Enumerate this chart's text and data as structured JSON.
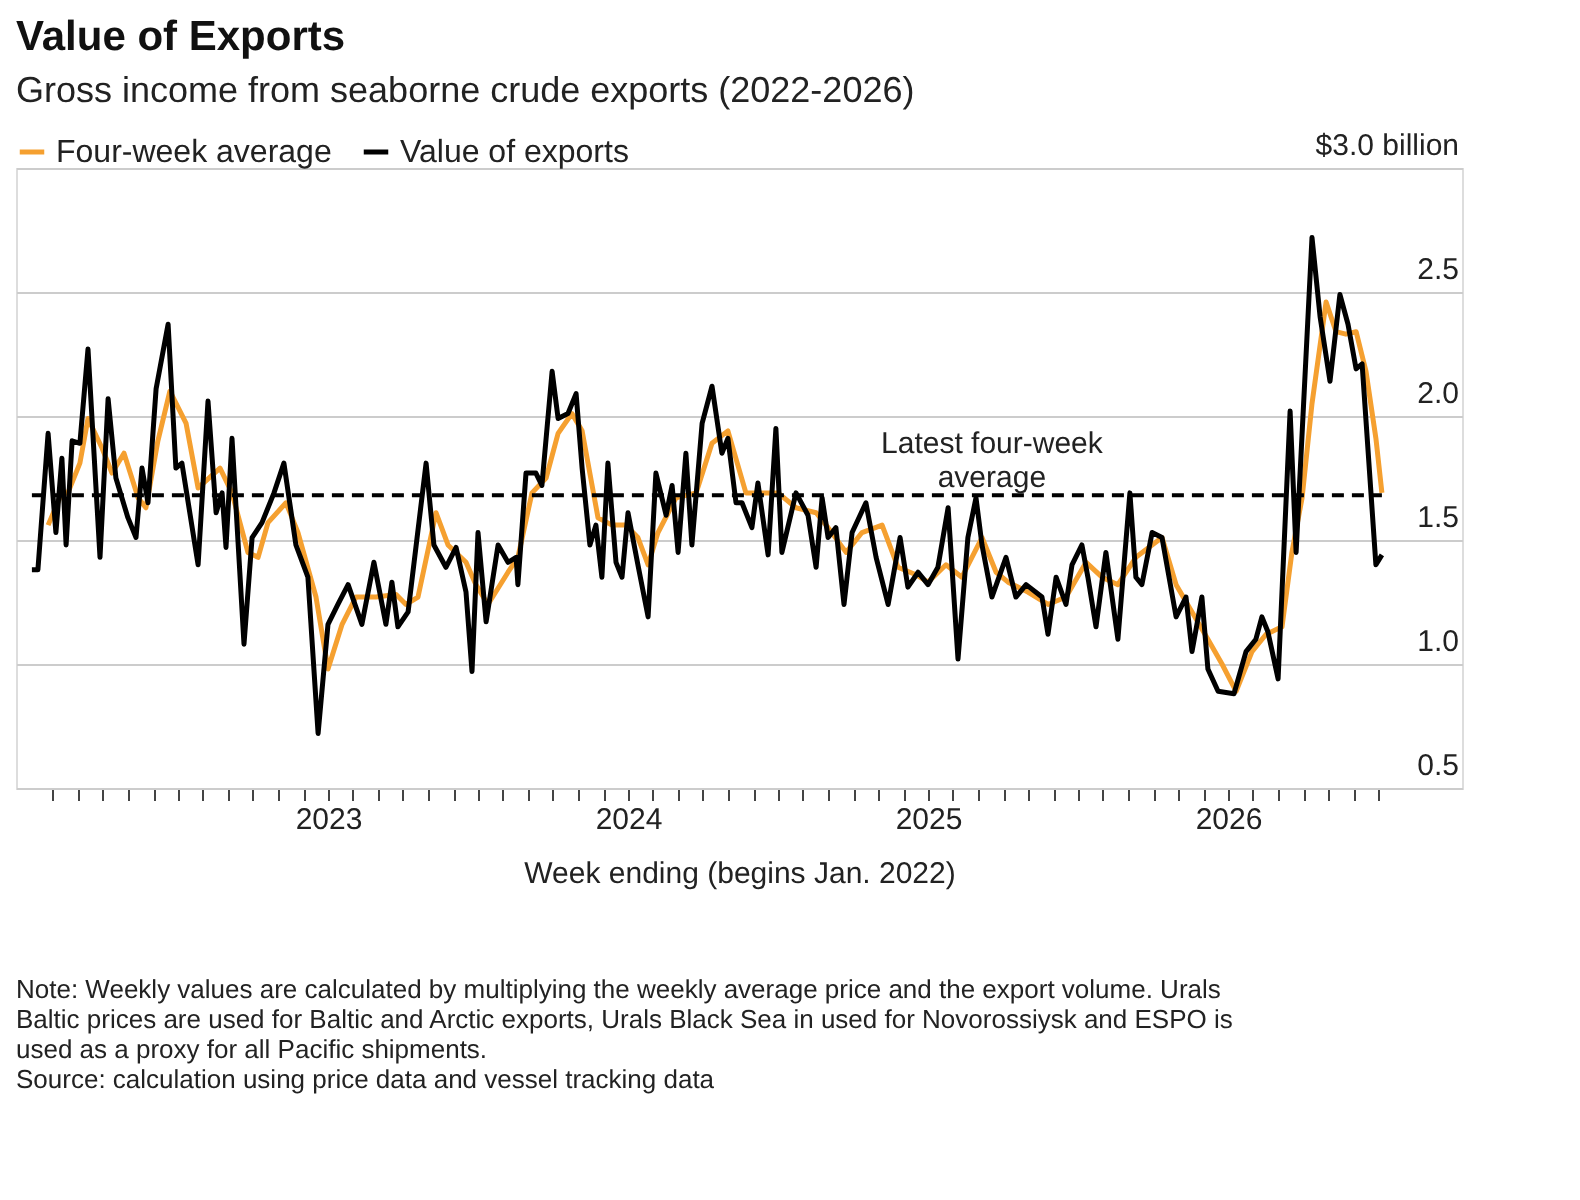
{
  "chart_data": {
    "type": "line",
    "title": "Value of Exports",
    "subtitle": "Gross income from seaborne crude exports (2022-2026)",
    "xlabel": "Week ending (begins Jan. 2022)",
    "legend": "top left",
    "grid": "y",
    "line_style": "solid",
    "xlim": [
      2021.96,
      2026.78
    ],
    "ylim": [
      0.5,
      3.0
    ],
    "yticks": [
      0.5,
      {
        "value": 1.0,
        "label": "1.0"
      },
      1.5,
      {
        "value": 2.0,
        "label": "2.0"
      },
      2.5,
      {
        "value": 3.0,
        "label": "$3.0 billion"
      }
    ],
    "xticks": [
      {
        "value": 2022.083,
        "label": null
      },
      {
        "value": 2022.167,
        "label": null
      },
      {
        "value": 2022.25,
        "label": null
      },
      {
        "value": 2022.333,
        "label": null
      },
      {
        "value": 2022.417,
        "label": null
      },
      {
        "value": 2022.5,
        "label": null
      },
      {
        "value": 2022.583,
        "label": null
      },
      {
        "value": 2022.667,
        "label": null
      },
      {
        "value": 2022.75,
        "label": null
      },
      {
        "value": 2022.833,
        "label": null
      },
      {
        "value": 2022.917,
        "label": null
      },
      {
        "value": 2023,
        "label": "2023"
      },
      {
        "value": 2023.083,
        "label": null
      },
      {
        "value": 2023.167,
        "label": null
      },
      {
        "value": 2023.25,
        "label": null
      },
      {
        "value": 2023.333,
        "label": null
      },
      {
        "value": 2023.417,
        "label": null
      },
      {
        "value": 2023.5,
        "label": null
      },
      {
        "value": 2023.583,
        "label": null
      },
      {
        "value": 2023.667,
        "label": null
      },
      {
        "value": 2023.75,
        "label": null
      },
      {
        "value": 2023.833,
        "label": null
      },
      {
        "value": 2023.917,
        "label": null
      },
      {
        "value": 2024,
        "label": "2024"
      },
      {
        "value": 2024.083,
        "label": null
      },
      {
        "value": 2024.167,
        "label": null
      },
      {
        "value": 2024.25,
        "label": null
      },
      {
        "value": 2024.333,
        "label": null
      },
      {
        "value": 2024.417,
        "label": null
      },
      {
        "value": 2024.5,
        "label": null
      },
      {
        "value": 2024.583,
        "label": null
      },
      {
        "value": 2024.667,
        "label": null
      },
      {
        "value": 2024.75,
        "label": null
      },
      {
        "value": 2024.833,
        "label": null
      },
      {
        "value": 2024.917,
        "label": null
      },
      {
        "value": 2025,
        "label": "2025"
      },
      {
        "value": 2025.083,
        "label": null
      },
      {
        "value": 2025.167,
        "label": null
      },
      {
        "value": 2025.25,
        "label": null
      },
      {
        "value": 2025.333,
        "label": null
      },
      {
        "value": 2025.417,
        "label": null
      },
      {
        "value": 2025.5,
        "label": null
      },
      {
        "value": 2025.583,
        "label": null
      },
      {
        "value": 2025.667,
        "label": null
      },
      {
        "value": 2025.75,
        "label": null
      },
      {
        "value": 2025.833,
        "label": null
      },
      {
        "value": 2025.917,
        "label": null
      },
      {
        "value": 2026,
        "label": "2026"
      },
      {
        "value": 2026.083,
        "label": null
      },
      {
        "value": 2026.167,
        "label": null
      },
      {
        "value": 2026.25,
        "label": null
      },
      {
        "value": 2026.333,
        "label": null
      },
      {
        "value": 2026.417,
        "label": null
      },
      {
        "value": 2026.5,
        "label": null
      }
    ],
    "ref_lines": [
      {
        "axis": "y",
        "value": 1.68,
        "label": "Latest four-week average",
        "color": "#000000",
        "line_style": "dashed"
      }
    ],
    "annotations": [
      "Note: Weekly values are calculated by multiplying the weekly average price and the export volume. Urals Baltic prices are used for Baltic and Arctic exports, Urals Black Sea in used for Novorossiysk and ESPO is used as a proxy for all Pacific shipments.",
      "Source: calculation using price data and vessel tracking data"
    ],
    "series": [
      {
        "name": "Four-week average",
        "color": "#f5a030",
        "x": [
          2022.067,
          2022.113,
          2022.133,
          2022.173,
          2022.2,
          2022.247,
          2022.28,
          2022.32,
          2022.367,
          2022.393,
          2022.433,
          2022.473,
          2022.527,
          2022.567,
          2022.64,
          2022.68,
          2022.733,
          2022.767,
          2022.8,
          2022.86,
          2022.9,
          2022.96,
          2023.0,
          2023.047,
          2023.093,
          2023.16,
          2023.227,
          2023.26,
          2023.3,
          2023.36,
          2023.4,
          2023.46,
          2023.493,
          2023.533,
          2023.6,
          2023.633,
          2023.68,
          2023.727,
          2023.767,
          2023.813,
          2023.847,
          2023.9,
          2023.947,
          2023.993,
          2024.033,
          2024.067,
          2024.1,
          2024.16,
          2024.227,
          2024.28,
          2024.333,
          2024.393,
          2024.447,
          2024.5,
          2024.56,
          2024.627,
          2024.667,
          2024.727,
          2024.78,
          2024.847,
          2024.9,
          2024.96,
          2025.0,
          2025.06,
          2025.113,
          2025.18,
          2025.227,
          2025.267,
          2025.333,
          2025.4,
          2025.46,
          2025.527,
          2025.58,
          2025.633,
          2025.693,
          2025.78,
          2025.827,
          2025.88,
          2025.933,
          2025.98,
          2026.027,
          2026.08,
          2026.127,
          2026.18,
          2026.213,
          2026.247,
          2026.28,
          2026.327,
          2026.36,
          2026.393,
          2026.427,
          2026.46,
          2026.493,
          2026.513
        ],
        "values": [
          1.56,
          1.69,
          1.69,
          1.81,
          1.99,
          1.87,
          1.77,
          1.85,
          1.67,
          1.63,
          1.9,
          2.1,
          1.97,
          1.71,
          1.79,
          1.69,
          1.45,
          1.43,
          1.57,
          1.65,
          1.53,
          1.27,
          0.98,
          1.16,
          1.27,
          1.27,
          1.28,
          1.24,
          1.27,
          1.61,
          1.48,
          1.41,
          1.32,
          1.24,
          1.37,
          1.43,
          1.69,
          1.75,
          1.93,
          2.01,
          1.94,
          1.59,
          1.56,
          1.56,
          1.51,
          1.4,
          1.53,
          1.67,
          1.69,
          1.89,
          1.94,
          1.69,
          1.69,
          1.69,
          1.63,
          1.61,
          1.55,
          1.45,
          1.53,
          1.56,
          1.39,
          1.36,
          1.33,
          1.4,
          1.35,
          1.51,
          1.37,
          1.33,
          1.29,
          1.24,
          1.27,
          1.41,
          1.35,
          1.32,
          1.43,
          1.51,
          1.32,
          1.21,
          1.1,
          1.0,
          0.89,
          1.05,
          1.12,
          1.15,
          1.45,
          1.67,
          2.05,
          2.46,
          2.34,
          2.33,
          2.34,
          2.18,
          1.91,
          1.69
        ]
      },
      {
        "name": "Value of exports",
        "color": "#000000",
        "x": [
          2022.013,
          2022.033,
          2022.067,
          2022.093,
          2022.113,
          2022.127,
          2022.147,
          2022.173,
          2022.2,
          2022.24,
          2022.267,
          2022.293,
          2022.333,
          2022.36,
          2022.38,
          2022.4,
          2022.427,
          2022.467,
          2022.493,
          2022.513,
          2022.567,
          2022.6,
          2022.627,
          2022.647,
          2022.66,
          2022.68,
          2022.72,
          2022.747,
          2022.78,
          2022.82,
          2022.853,
          2022.893,
          2022.933,
          2022.967,
          2023.0,
          2023.033,
          2023.067,
          2023.113,
          2023.153,
          2023.193,
          2023.213,
          2023.233,
          2023.267,
          2023.327,
          2023.353,
          2023.393,
          2023.427,
          2023.46,
          2023.48,
          2023.5,
          2023.527,
          2023.567,
          2023.6,
          2023.627,
          2023.633,
          2023.66,
          2023.693,
          2023.713,
          2023.747,
          2023.767,
          2023.8,
          2023.827,
          2023.847,
          2023.873,
          2023.893,
          2023.913,
          2023.933,
          2023.96,
          2023.98,
          2024.0,
          2024.033,
          2024.067,
          2024.093,
          2024.127,
          2024.147,
          2024.167,
          2024.193,
          2024.213,
          2024.247,
          2024.28,
          2024.313,
          2024.333,
          2024.36,
          2024.38,
          2024.413,
          2024.433,
          2024.467,
          2024.493,
          2024.513,
          2024.56,
          2024.6,
          2024.627,
          2024.647,
          2024.667,
          2024.693,
          2024.72,
          2024.747,
          2024.793,
          2024.827,
          2024.867,
          2024.907,
          2024.933,
          2024.967,
          2025.0,
          2025.033,
          2025.067,
          2025.1,
          2025.133,
          2025.16,
          2025.18,
          2025.213,
          2025.26,
          2025.293,
          2025.327,
          2025.38,
          2025.4,
          2025.427,
          2025.46,
          2025.48,
          2025.513,
          2025.533,
          2025.56,
          2025.593,
          2025.633,
          2025.673,
          2025.693,
          2025.713,
          2025.747,
          2025.78,
          2025.827,
          2025.86,
          2025.88,
          2025.913,
          2025.933,
          2025.967,
          2026.02,
          2026.06,
          2026.093,
          2026.113,
          2026.133,
          2026.167,
          2026.207,
          2026.227,
          2026.28,
          2026.307,
          2026.34,
          2026.373,
          2026.4,
          2026.427,
          2026.447,
          2026.493,
          2026.513
        ],
        "values": [
          1.38,
          1.38,
          1.93,
          1.53,
          1.83,
          1.48,
          1.9,
          1.89,
          2.27,
          1.43,
          2.07,
          1.75,
          1.59,
          1.51,
          1.79,
          1.65,
          2.11,
          2.37,
          1.79,
          1.81,
          1.4,
          2.06,
          1.61,
          1.69,
          1.47,
          1.91,
          1.08,
          1.51,
          1.57,
          1.69,
          1.81,
          1.48,
          1.35,
          0.72,
          1.16,
          1.24,
          1.32,
          1.16,
          1.41,
          1.16,
          1.33,
          1.15,
          1.21,
          1.81,
          1.48,
          1.39,
          1.47,
          1.29,
          0.97,
          1.53,
          1.17,
          1.48,
          1.41,
          1.43,
          1.32,
          1.77,
          1.77,
          1.72,
          2.18,
          1.99,
          2.01,
          2.09,
          1.79,
          1.48,
          1.56,
          1.35,
          1.81,
          1.41,
          1.35,
          1.61,
          1.4,
          1.19,
          1.77,
          1.6,
          1.72,
          1.45,
          1.85,
          1.48,
          1.97,
          2.12,
          1.85,
          1.91,
          1.65,
          1.65,
          1.55,
          1.73,
          1.44,
          1.95,
          1.45,
          1.69,
          1.6,
          1.39,
          1.67,
          1.51,
          1.55,
          1.24,
          1.53,
          1.65,
          1.43,
          1.24,
          1.51,
          1.31,
          1.37,
          1.32,
          1.39,
          1.63,
          1.02,
          1.51,
          1.67,
          1.48,
          1.27,
          1.43,
          1.27,
          1.32,
          1.27,
          1.12,
          1.35,
          1.24,
          1.4,
          1.48,
          1.35,
          1.15,
          1.45,
          1.1,
          1.69,
          1.35,
          1.32,
          1.53,
          1.51,
          1.19,
          1.27,
          1.05,
          1.27,
          0.98,
          0.89,
          0.88,
          1.05,
          1.1,
          1.19,
          1.13,
          0.94,
          2.02,
          1.45,
          2.72,
          2.4,
          2.14,
          2.49,
          2.37,
          2.19,
          2.21,
          1.4,
          1.44
        ]
      }
    ]
  }
}
